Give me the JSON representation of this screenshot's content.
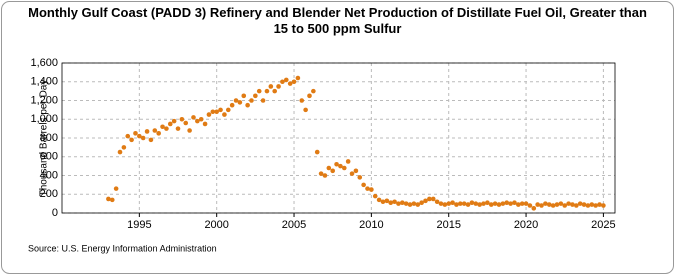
{
  "chart_data": {
    "type": "scatter",
    "title": "Monthly Gulf Coast (PADD 3) Refinery and Blender Net Production of Distillate Fuel Oil, Greater than 15 to 500 ppm Sulfur",
    "y_label": "Thousand Barrels per Day",
    "source": "Source: U.S. Energy Information Administration",
    "color": "#e07b14",
    "grid": true,
    "xlim": [
      1990,
      2025.75
    ],
    "xticks": [
      1995,
      2000,
      2005,
      2010,
      2015,
      2020,
      2025
    ],
    "ylim": [
      0,
      1600
    ],
    "yticks": [
      0,
      200,
      400,
      600,
      800,
      {
        "value": 1000,
        "label": "1,000"
      },
      {
        "value": 1200,
        "label": "1,200"
      },
      {
        "value": 1400,
        "label": "1,400"
      },
      {
        "value": 1600,
        "label": "1,600"
      }
    ],
    "x": [
      1993,
      1993.25,
      1993.5,
      1993.75,
      1994,
      1994.25,
      1994.5,
      1994.75,
      1995,
      1995.25,
      1995.5,
      1995.75,
      1996,
      1996.25,
      1996.5,
      1996.75,
      1997,
      1997.25,
      1997.5,
      1997.75,
      1998,
      1998.25,
      1998.5,
      1998.75,
      1999,
      1999.25,
      1999.5,
      1999.75,
      2000,
      2000.25,
      2000.5,
      2000.75,
      2001,
      2001.25,
      2001.5,
      2001.75,
      2002,
      2002.25,
      2002.5,
      2002.75,
      2003,
      2003.25,
      2003.5,
      2003.75,
      2004,
      2004.25,
      2004.5,
      2004.75,
      2005,
      2005.25,
      2005.5,
      2005.75,
      2006,
      2006.25,
      2006.5,
      2006.75,
      2007,
      2007.25,
      2007.5,
      2007.75,
      2008,
      2008.25,
      2008.5,
      2008.75,
      2009,
      2009.25,
      2009.5,
      2009.75,
      2010,
      2010.25,
      2010.5,
      2010.75,
      2011,
      2011.25,
      2011.5,
      2011.75,
      2012,
      2012.25,
      2012.5,
      2012.75,
      2013,
      2013.25,
      2013.5,
      2013.75,
      2014,
      2014.25,
      2014.5,
      2014.75,
      2015,
      2015.25,
      2015.5,
      2015.75,
      2016,
      2016.25,
      2016.5,
      2016.75,
      2017,
      2017.25,
      2017.5,
      2017.75,
      2018,
      2018.25,
      2018.5,
      2018.75,
      2019,
      2019.25,
      2019.5,
      2019.75,
      2020,
      2020.25,
      2020.5,
      2020.75,
      2021,
      2021.25,
      2021.5,
      2021.75,
      2022,
      2022.25,
      2022.5,
      2022.75,
      2023,
      2023.25,
      2023.5,
      2023.75,
      2024,
      2024.25,
      2024.5,
      2024.75,
      2025
    ],
    "values": [
      150,
      140,
      260,
      650,
      700,
      820,
      780,
      850,
      820,
      800,
      870,
      780,
      880,
      850,
      920,
      900,
      950,
      980,
      900,
      1000,
      960,
      880,
      1020,
      980,
      1000,
      950,
      1050,
      1080,
      1080,
      1100,
      1050,
      1100,
      1150,
      1200,
      1180,
      1250,
      1150,
      1200,
      1250,
      1300,
      1200,
      1300,
      1350,
      1300,
      1350,
      1400,
      1420,
      1380,
      1400,
      1440,
      1200,
      1100,
      1250,
      1300,
      650,
      420,
      400,
      480,
      450,
      520,
      500,
      480,
      550,
      420,
      450,
      380,
      300,
      260,
      250,
      180,
      140,
      120,
      130,
      110,
      120,
      100,
      110,
      100,
      90,
      100,
      90,
      110,
      130,
      150,
      150,
      120,
      100,
      90,
      100,
      110,
      90,
      100,
      100,
      90,
      110,
      100,
      90,
      100,
      110,
      90,
      100,
      90,
      100,
      110,
      100,
      110,
      90,
      100,
      100,
      80,
      50,
      90,
      80,
      100,
      90,
      80,
      90,
      100,
      80,
      100,
      90,
      80,
      100,
      90,
      80,
      90,
      80,
      90,
      80
    ]
  }
}
